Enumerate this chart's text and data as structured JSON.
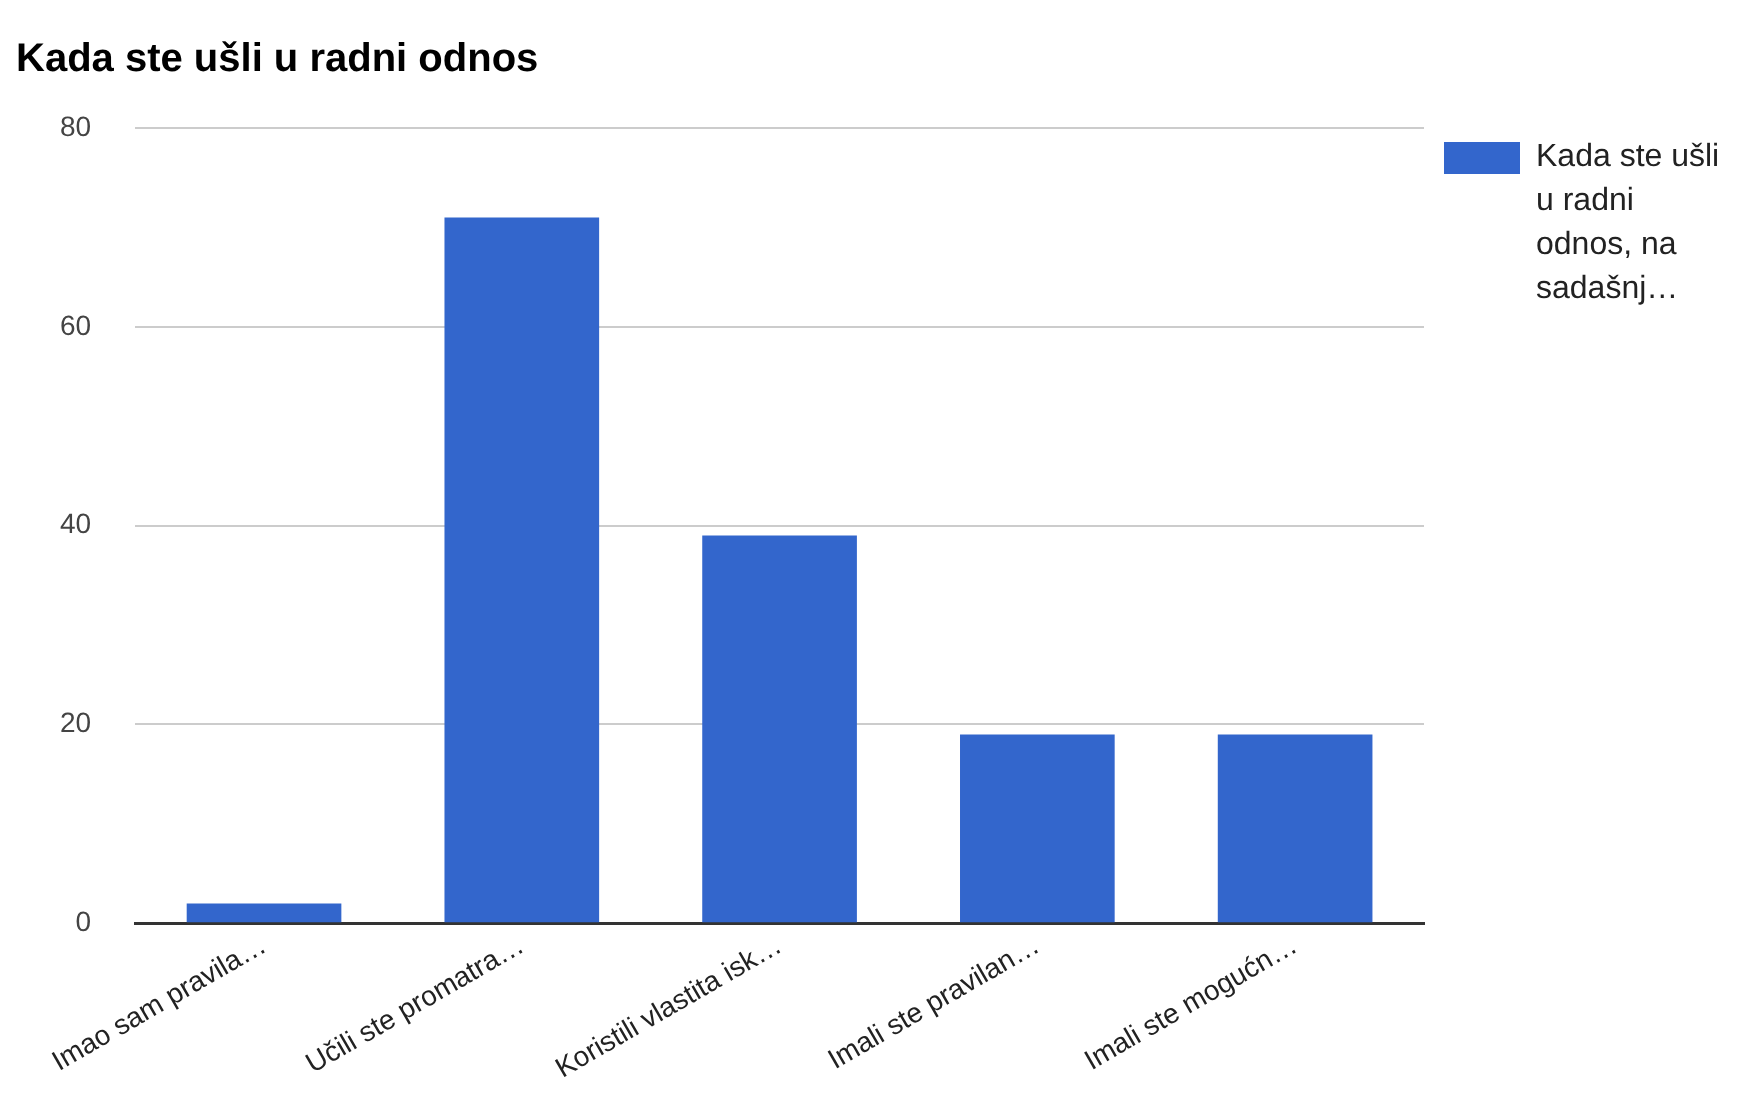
{
  "chart_data": {
    "type": "bar",
    "title": "Kada ste ušli u radni odnos",
    "categories": [
      "Imao sam pravila…",
      "Učili ste promatra…",
      "Koristili vlastita isk…",
      "Imali ste pravilan…",
      "Imali ste mogućn…"
    ],
    "series": [
      {
        "name": "Kada ste ušli u radni odnos, na sadašnj…",
        "color": "#3366cc",
        "values": [
          2,
          71,
          39,
          19,
          19
        ]
      }
    ],
    "ylim": [
      0,
      80
    ],
    "yticks": [
      0,
      20,
      40,
      60,
      80
    ],
    "grid": "y",
    "legend": "right"
  }
}
